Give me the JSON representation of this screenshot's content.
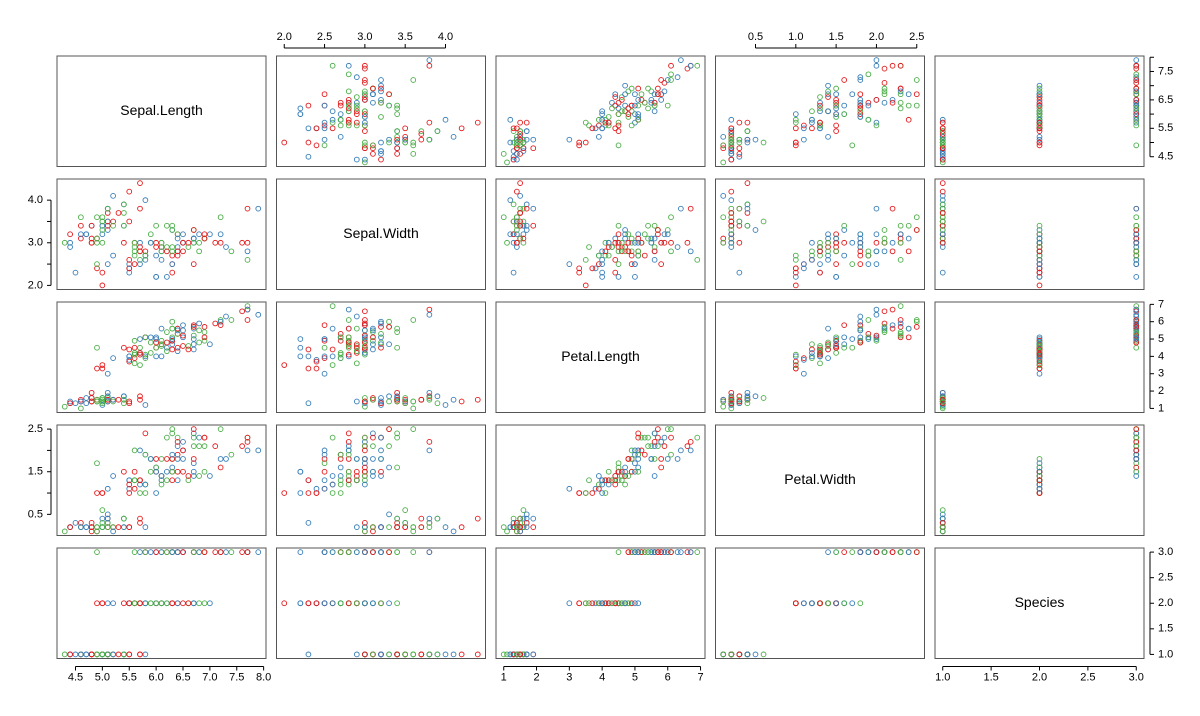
{
  "chart_data": {
    "type": "scatter_matrix",
    "colors": [
      "#e41a1c",
      "#4daf4a",
      "#377eb8"
    ],
    "variables": [
      {
        "name": "Sepal.Length",
        "lim": [
          4.156,
          8.044
        ],
        "xticks": [
          4.5,
          {
            "value": 5,
            "label": "5.0"
          },
          5.5,
          {
            "value": 6,
            "label": "6.0"
          },
          6.5,
          {
            "value": 7,
            "label": "7.0"
          },
          7.5,
          {
            "value": 8,
            "label": "8.0"
          }
        ],
        "yticks": [
          4.5,
          5.5,
          6.5,
          7.5
        ],
        "values": [
          5.1,
          4.9,
          4.7,
          4.6,
          5.0,
          5.4,
          4.6,
          5.0,
          4.4,
          4.9,
          5.4,
          4.8,
          4.8,
          4.3,
          5.8,
          5.7,
          5.4,
          5.1,
          5.7,
          5.1,
          5.4,
          5.1,
          4.6,
          5.1,
          4.8,
          5.0,
          5.0,
          5.2,
          5.2,
          4.7,
          4.8,
          5.4,
          5.2,
          5.5,
          4.9,
          5.0,
          5.5,
          4.9,
          4.4,
          5.1,
          5.0,
          4.5,
          4.4,
          5.0,
          5.1,
          4.8,
          5.1,
          4.6,
          5.3,
          5.0,
          7.0,
          6.4,
          6.9,
          5.5,
          6.5,
          5.7,
          6.3,
          4.9,
          6.6,
          5.2,
          5.0,
          5.9,
          6.0,
          6.1,
          5.6,
          6.7,
          5.6,
          5.8,
          6.2,
          5.6,
          5.9,
          6.1,
          6.3,
          6.1,
          6.4,
          6.6,
          6.8,
          6.7,
          6.0,
          5.7,
          5.5,
          5.5,
          5.8,
          6.0,
          5.4,
          6.0,
          6.7,
          6.3,
          5.6,
          5.5,
          5.5,
          6.1,
          5.8,
          5.0,
          5.6,
          5.7,
          5.7,
          6.2,
          5.1,
          5.7,
          6.3,
          5.8,
          7.1,
          6.3,
          6.5,
          7.6,
          4.9,
          7.3,
          6.7,
          7.2,
          6.5,
          6.4,
          6.8,
          5.7,
          5.8,
          6.4,
          6.5,
          7.7,
          7.7,
          6.0,
          6.9,
          5.6,
          7.7,
          6.3,
          6.7,
          7.2,
          6.2,
          6.1,
          6.4,
          7.2,
          7.4,
          7.9,
          6.4,
          6.3,
          6.1,
          7.7,
          6.3,
          6.4,
          6.0,
          6.9,
          6.7,
          6.9,
          5.8,
          6.8,
          6.7,
          6.7,
          6.3,
          6.5,
          6.2,
          5.9
        ]
      },
      {
        "name": "Sepal.Width",
        "lim": [
          1.904,
          4.496
        ],
        "xticks": [
          {
            "value": 2,
            "label": "2.0"
          },
          2.5,
          {
            "value": 3,
            "label": "3.0"
          },
          3.5,
          {
            "value": 4,
            "label": "4.0"
          }
        ],
        "yticks": [
          {
            "value": 2,
            "label": "2.0"
          },
          {
            "value": 3,
            "label": "3.0"
          },
          {
            "value": 4,
            "label": "4.0"
          }
        ],
        "values": [
          3.5,
          3.0,
          3.2,
          3.1,
          3.6,
          3.9,
          3.4,
          3.4,
          2.9,
          3.1,
          3.7,
          3.4,
          3.0,
          3.0,
          4.0,
          4.4,
          3.9,
          3.5,
          3.8,
          3.8,
          3.4,
          3.7,
          3.6,
          3.3,
          3.4,
          3.0,
          3.4,
          3.5,
          3.4,
          3.2,
          3.1,
          3.4,
          4.1,
          4.2,
          3.1,
          3.2,
          3.5,
          3.6,
          3.0,
          3.4,
          3.5,
          2.3,
          3.2,
          3.5,
          3.8,
          3.0,
          3.8,
          3.2,
          3.7,
          3.3,
          3.2,
          3.2,
          3.1,
          2.3,
          2.8,
          2.8,
          3.3,
          2.4,
          2.9,
          2.7,
          2.0,
          3.0,
          2.2,
          2.9,
          2.9,
          3.1,
          3.0,
          2.7,
          2.2,
          2.5,
          3.2,
          2.8,
          2.5,
          2.8,
          2.9,
          3.0,
          2.8,
          3.0,
          2.9,
          2.6,
          2.4,
          2.4,
          2.7,
          2.7,
          3.0,
          3.4,
          3.1,
          2.3,
          3.0,
          2.5,
          2.6,
          3.0,
          2.6,
          2.3,
          2.7,
          3.0,
          2.9,
          2.9,
          2.5,
          2.8,
          3.3,
          2.7,
          3.0,
          2.9,
          3.0,
          3.0,
          2.5,
          2.9,
          2.5,
          3.6,
          3.2,
          2.7,
          3.0,
          2.5,
          2.8,
          3.2,
          3.0,
          3.8,
          2.6,
          2.2,
          3.2,
          2.8,
          2.8,
          2.7,
          3.3,
          3.2,
          2.8,
          3.0,
          2.8,
          3.0,
          2.8,
          3.8,
          2.8,
          2.8,
          2.6,
          3.0,
          3.4,
          3.1,
          3.0,
          3.1,
          3.1,
          3.1,
          2.7,
          3.2,
          3.3,
          3.0,
          2.5,
          3.0,
          3.4,
          3.0
        ]
      },
      {
        "name": "Petal.Length",
        "lim": [
          0.764,
          7.136
        ],
        "xticks": [
          1,
          2,
          3,
          4,
          5,
          6,
          7
        ],
        "yticks": [
          1,
          2,
          3,
          4,
          5,
          6,
          7
        ],
        "values": [
          1.4,
          1.4,
          1.3,
          1.5,
          1.4,
          1.7,
          1.4,
          1.5,
          1.4,
          1.5,
          1.5,
          1.6,
          1.4,
          1.1,
          1.2,
          1.5,
          1.3,
          1.4,
          1.7,
          1.5,
          1.7,
          1.5,
          1.0,
          1.7,
          1.9,
          1.6,
          1.6,
          1.5,
          1.4,
          1.6,
          1.6,
          1.5,
          1.5,
          1.4,
          1.5,
          1.2,
          1.3,
          1.4,
          1.3,
          1.5,
          1.3,
          1.3,
          1.3,
          1.6,
          1.9,
          1.4,
          1.6,
          1.4,
          1.5,
          1.4,
          4.7,
          4.5,
          4.9,
          4.0,
          4.6,
          4.5,
          4.7,
          3.3,
          4.6,
          3.9,
          3.5,
          4.2,
          4.0,
          4.7,
          3.6,
          4.4,
          4.5,
          4.1,
          4.5,
          3.9,
          4.8,
          4.0,
          4.9,
          4.7,
          4.3,
          4.4,
          4.8,
          5.0,
          4.5,
          3.5,
          3.8,
          3.7,
          3.9,
          5.1,
          4.5,
          4.5,
          4.7,
          4.4,
          4.1,
          4.0,
          4.4,
          4.6,
          4.0,
          3.3,
          4.2,
          4.2,
          4.2,
          4.3,
          3.0,
          4.1,
          6.0,
          5.1,
          5.9,
          5.6,
          5.8,
          6.6,
          4.5,
          6.3,
          5.8,
          6.1,
          5.1,
          5.3,
          5.5,
          5.0,
          5.1,
          5.3,
          5.5,
          6.7,
          6.9,
          5.0,
          5.7,
          4.9,
          6.7,
          4.9,
          5.7,
          6.0,
          4.8,
          4.9,
          5.6,
          5.8,
          6.1,
          6.4,
          5.6,
          5.1,
          5.6,
          6.1,
          5.6,
          5.5,
          4.8,
          5.4,
          5.6,
          5.1,
          5.1,
          5.9,
          5.7,
          5.2,
          5.0,
          5.2,
          5.4,
          5.1
        ]
      },
      {
        "name": "Petal.Width",
        "lim": [
          0.004,
          2.596
        ],
        "xticks": [
          0.5,
          {
            "value": 1,
            "label": "1.0"
          },
          1.5,
          {
            "value": 2,
            "label": "2.0"
          },
          2.5
        ],
        "yticks": [
          0.5,
          1.5,
          2.5
        ],
        "values": [
          0.2,
          0.2,
          0.2,
          0.2,
          0.2,
          0.4,
          0.3,
          0.2,
          0.2,
          0.1,
          0.2,
          0.2,
          0.1,
          0.1,
          0.2,
          0.4,
          0.4,
          0.3,
          0.3,
          0.3,
          0.2,
          0.4,
          0.2,
          0.5,
          0.2,
          0.2,
          0.4,
          0.2,
          0.2,
          0.2,
          0.2,
          0.4,
          0.1,
          0.2,
          0.2,
          0.2,
          0.2,
          0.1,
          0.2,
          0.2,
          0.3,
          0.3,
          0.2,
          0.6,
          0.4,
          0.3,
          0.2,
          0.2,
          0.2,
          0.2,
          1.4,
          1.5,
          1.5,
          1.3,
          1.5,
          1.3,
          1.6,
          1.0,
          1.3,
          1.4,
          1.0,
          1.5,
          1.0,
          1.4,
          1.3,
          1.4,
          1.5,
          1.0,
          1.5,
          1.1,
          1.8,
          1.3,
          1.5,
          1.2,
          1.3,
          1.4,
          1.4,
          1.7,
          1.5,
          1.0,
          1.1,
          1.0,
          1.2,
          1.6,
          1.5,
          1.6,
          1.5,
          1.3,
          1.3,
          1.3,
          1.2,
          1.4,
          1.2,
          1.0,
          1.3,
          1.2,
          1.3,
          1.3,
          1.1,
          1.3,
          2.5,
          1.9,
          2.1,
          1.8,
          2.2,
          2.1,
          1.7,
          1.8,
          1.8,
          2.5,
          2.0,
          1.9,
          2.1,
          2.0,
          2.4,
          2.3,
          1.8,
          2.2,
          2.3,
          1.5,
          2.3,
          2.0,
          2.0,
          1.8,
          2.1,
          1.8,
          1.8,
          1.8,
          2.1,
          1.6,
          1.9,
          2.0,
          2.2,
          1.5,
          1.4,
          2.3,
          2.4,
          1.8,
          1.8,
          2.1,
          2.4,
          2.3,
          1.9,
          2.3,
          2.5,
          2.3,
          1.9,
          2.0,
          2.3,
          1.8
        ]
      },
      {
        "name": "Species",
        "lim": [
          0.92,
          3.08
        ],
        "xticks": [
          {
            "value": 1,
            "label": "1.0"
          },
          1.5,
          {
            "value": 2,
            "label": "2.0"
          },
          2.5,
          {
            "value": 3,
            "label": "3.0"
          }
        ],
        "yticks": [
          {
            "value": 1,
            "label": "1.0"
          },
          1.5,
          {
            "value": 2,
            "label": "2.0"
          },
          2.5,
          {
            "value": 3,
            "label": "3.0"
          }
        ],
        "values": [
          1,
          1,
          1,
          1,
          1,
          1,
          1,
          1,
          1,
          1,
          1,
          1,
          1,
          1,
          1,
          1,
          1,
          1,
          1,
          1,
          1,
          1,
          1,
          1,
          1,
          1,
          1,
          1,
          1,
          1,
          1,
          1,
          1,
          1,
          1,
          1,
          1,
          1,
          1,
          1,
          1,
          1,
          1,
          1,
          1,
          1,
          1,
          1,
          1,
          1,
          2,
          2,
          2,
          2,
          2,
          2,
          2,
          2,
          2,
          2,
          2,
          2,
          2,
          2,
          2,
          2,
          2,
          2,
          2,
          2,
          2,
          2,
          2,
          2,
          2,
          2,
          2,
          2,
          2,
          2,
          2,
          2,
          2,
          2,
          2,
          2,
          2,
          2,
          2,
          2,
          2,
          2,
          2,
          2,
          2,
          2,
          2,
          2,
          2,
          2,
          3,
          3,
          3,
          3,
          3,
          3,
          3,
          3,
          3,
          3,
          3,
          3,
          3,
          3,
          3,
          3,
          3,
          3,
          3,
          3,
          3,
          3,
          3,
          3,
          3,
          3,
          3,
          3,
          3,
          3,
          3,
          3,
          3,
          3,
          3,
          3,
          3,
          3,
          3,
          3,
          3,
          3,
          3,
          3,
          3,
          3,
          3,
          3,
          3,
          3
        ]
      }
    ]
  }
}
